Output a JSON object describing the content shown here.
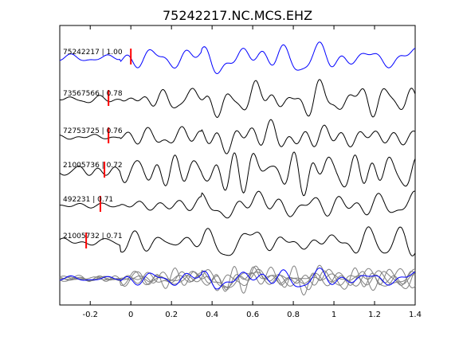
{
  "chart_data": {
    "type": "line",
    "title": "75242217.NC.MCS.EHZ",
    "xlabel": "",
    "ylabel": "",
    "xlim": [
      -0.35,
      1.4
    ],
    "x_ticks": [
      "-0.2",
      "0",
      "0.2",
      "0.4",
      "0.6",
      "0.8",
      "1",
      "1.2",
      "1.4"
    ],
    "x_tick_values": [
      -0.2,
      0,
      0.2,
      0.4,
      0.6,
      0.8,
      1.0,
      1.2,
      1.4
    ],
    "grid": false,
    "colors": {
      "reference": "#0000ff",
      "trace": "#000000",
      "stack": "#808080",
      "pick": "#ff0000"
    },
    "traces": [
      {
        "label": "75242217 | 1.00",
        "event_id": "75242217",
        "correlation": 1.0,
        "pick_time": 0.0,
        "color": "#0000ff",
        "seed": 11,
        "amp": 1.0
      },
      {
        "label": "73567566 | 0.78",
        "event_id": "73567566",
        "correlation": 0.78,
        "pick_time": -0.11,
        "color": "#000000",
        "seed": 23,
        "amp": 1.1
      },
      {
        "label": "72753725 | 0.76",
        "event_id": "72753725",
        "correlation": 0.76,
        "pick_time": -0.11,
        "color": "#000000",
        "seed": 37,
        "amp": 1.0
      },
      {
        "label": "21005736 | 0.72",
        "event_id": "21005736",
        "correlation": 0.72,
        "pick_time": -0.13,
        "color": "#000000",
        "seed": 41,
        "amp": 1.0
      },
      {
        "label": "492231 | 0.71",
        "event_id": "492231",
        "correlation": 0.71,
        "pick_time": -0.15,
        "color": "#000000",
        "seed": 53,
        "amp": 1.2
      },
      {
        "label": "21005732 | 0.71",
        "event_id": "21005732",
        "correlation": 0.71,
        "pick_time": -0.22,
        "color": "#000000",
        "seed": 67,
        "amp": 1.0
      }
    ]
  }
}
